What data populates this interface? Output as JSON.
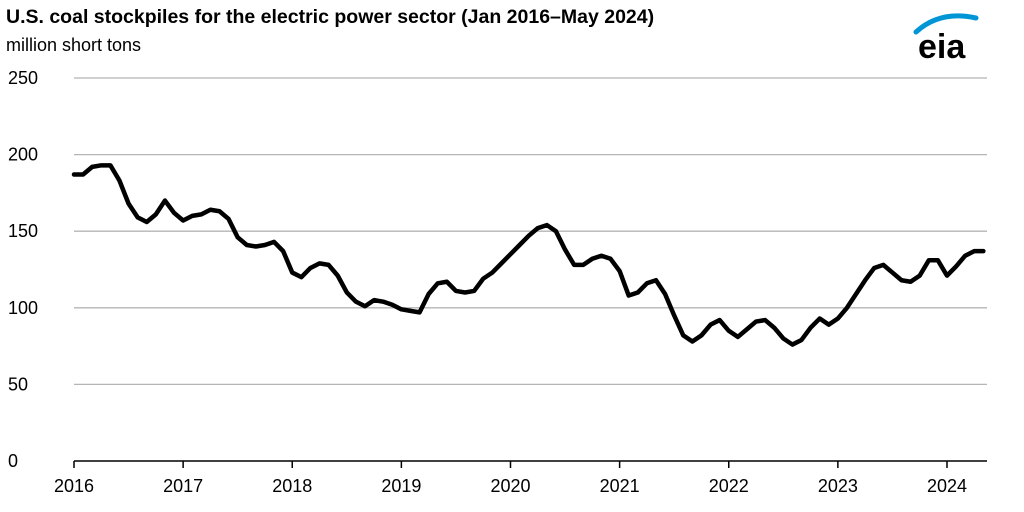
{
  "header": {
    "title": "U.S. coal stockpiles for the electric power sector (Jan 2016–May 2024)",
    "subtitle": "million short tons",
    "logo_text": "eia"
  },
  "colors": {
    "line": "#000000",
    "grid": "#b5b5b5",
    "axis": "#000000",
    "logo_arc": "#0096d6"
  },
  "chart_data": {
    "type": "line",
    "title": "U.S. coal stockpiles for the electric power sector (Jan 2016–May 2024)",
    "ylabel": "million short tons",
    "xlabel": "",
    "ylim": [
      0,
      250
    ],
    "yticks": [
      0,
      50,
      100,
      150,
      200,
      250
    ],
    "xticks": [
      "2016",
      "2017",
      "2018",
      "2019",
      "2020",
      "2021",
      "2022",
      "2023",
      "2024"
    ],
    "grid": true,
    "legend": "none",
    "x_start": "2016-01",
    "x_end": "2024-05",
    "series": [
      {
        "values": [
          187,
          187,
          192,
          193,
          193,
          183,
          168,
          159,
          156,
          161,
          170,
          162,
          157,
          160,
          161,
          164,
          163,
          158,
          146,
          141,
          140,
          141,
          143,
          137,
          123,
          120,
          126,
          129,
          128,
          121,
          110,
          104,
          101,
          105,
          104,
          102,
          99,
          98,
          97,
          109,
          116,
          117,
          111,
          110,
          111,
          119,
          123,
          129,
          135,
          141,
          147,
          152,
          154,
          150,
          138,
          128,
          128,
          132,
          134,
          132,
          124,
          108,
          110,
          116,
          118,
          109,
          95,
          82,
          78,
          82,
          89,
          92,
          85,
          81,
          86,
          91,
          92,
          87,
          80,
          76,
          79,
          87,
          93,
          89,
          93,
          100,
          109,
          118,
          126,
          128,
          123,
          118,
          117,
          121,
          131,
          131,
          121,
          127,
          134,
          137,
          137
        ]
      }
    ]
  }
}
